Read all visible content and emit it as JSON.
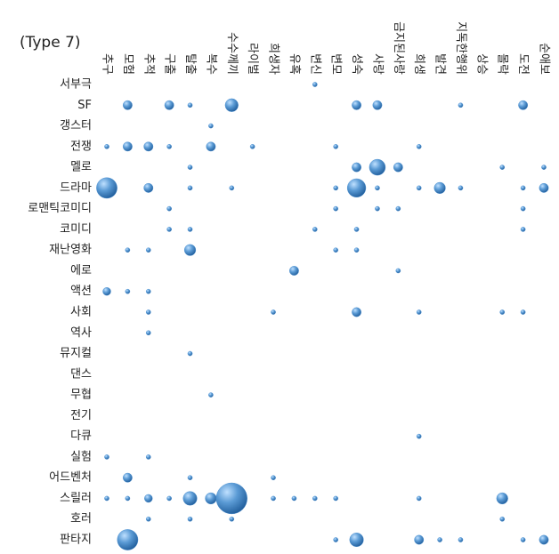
{
  "chart_data": {
    "type": "bubble",
    "title": "(Type 7)",
    "x_categories": [
      "추구",
      "모험",
      "추적",
      "구출",
      "탈출",
      "복수",
      "수수께끼",
      "라이벌",
      "희생자",
      "유혹",
      "변신",
      "변모",
      "성숙",
      "사랑",
      "금지된사랑",
      "희생",
      "발견",
      "지독한행위",
      "상승",
      "몰락",
      "도전",
      "순애보"
    ],
    "color": "#4a8fd0",
    "series": [
      {
        "name": "서부극",
        "values": [
          null,
          null,
          null,
          null,
          null,
          null,
          null,
          null,
          null,
          null,
          1,
          null,
          null,
          null,
          null,
          null,
          null,
          null,
          null,
          null,
          null,
          null
        ]
      },
      {
        "name": "SF",
        "values": [
          null,
          4,
          null,
          4,
          1,
          null,
          8,
          null,
          null,
          null,
          null,
          null,
          4,
          4,
          null,
          null,
          null,
          1,
          null,
          null,
          4,
          null
        ]
      },
      {
        "name": "갱스터",
        "values": [
          null,
          null,
          null,
          null,
          null,
          1,
          null,
          null,
          null,
          null,
          null,
          null,
          null,
          null,
          null,
          null,
          null,
          null,
          null,
          null,
          null,
          null
        ]
      },
      {
        "name": "전쟁",
        "values": [
          1,
          4,
          4,
          1,
          null,
          4,
          null,
          1,
          null,
          null,
          null,
          1,
          null,
          null,
          null,
          1,
          null,
          null,
          null,
          null,
          null,
          null
        ]
      },
      {
        "name": "멜로",
        "values": [
          null,
          null,
          null,
          null,
          1,
          null,
          null,
          null,
          null,
          null,
          null,
          null,
          4,
          12,
          4,
          null,
          null,
          null,
          null,
          1,
          null,
          1
        ]
      },
      {
        "name": "드라마",
        "values": [
          20,
          null,
          4,
          null,
          1,
          null,
          1,
          null,
          null,
          null,
          null,
          1,
          16,
          1,
          null,
          1,
          6,
          1,
          null,
          null,
          1,
          4
        ]
      },
      {
        "name": "로맨틱코미디",
        "values": [
          null,
          null,
          null,
          1,
          null,
          null,
          null,
          null,
          null,
          null,
          null,
          1,
          null,
          1,
          1,
          null,
          null,
          null,
          null,
          null,
          1,
          null
        ]
      },
      {
        "name": "코미디",
        "values": [
          null,
          null,
          null,
          1,
          1,
          null,
          null,
          null,
          null,
          null,
          1,
          null,
          1,
          null,
          null,
          null,
          null,
          null,
          null,
          null,
          1,
          null
        ]
      },
      {
        "name": "재난영화",
        "values": [
          null,
          1,
          1,
          null,
          6,
          null,
          null,
          null,
          null,
          null,
          null,
          1,
          1,
          null,
          null,
          null,
          null,
          null,
          null,
          null,
          null,
          null
        ]
      },
      {
        "name": "에로",
        "values": [
          null,
          null,
          null,
          null,
          null,
          null,
          null,
          null,
          null,
          4,
          null,
          null,
          null,
          null,
          1,
          null,
          null,
          null,
          null,
          null,
          null,
          null
        ]
      },
      {
        "name": "액션",
        "values": [
          3,
          1,
          1,
          null,
          null,
          null,
          null,
          null,
          null,
          null,
          null,
          null,
          null,
          null,
          null,
          null,
          null,
          null,
          null,
          null,
          null,
          null
        ]
      },
      {
        "name": "사회",
        "values": [
          null,
          null,
          1,
          null,
          null,
          null,
          null,
          null,
          1,
          null,
          null,
          null,
          4,
          null,
          null,
          1,
          null,
          null,
          null,
          1,
          1,
          null
        ]
      },
      {
        "name": "역사",
        "values": [
          null,
          null,
          1,
          null,
          null,
          null,
          null,
          null,
          null,
          null,
          null,
          null,
          null,
          null,
          null,
          null,
          null,
          null,
          null,
          null,
          null,
          null
        ]
      },
      {
        "name": "뮤지컬",
        "values": [
          null,
          null,
          null,
          null,
          1,
          null,
          null,
          null,
          null,
          null,
          null,
          null,
          null,
          null,
          null,
          null,
          null,
          null,
          null,
          null,
          null,
          null
        ]
      },
      {
        "name": "댄스",
        "values": [
          null,
          null,
          null,
          null,
          null,
          null,
          null,
          null,
          null,
          null,
          null,
          null,
          null,
          null,
          null,
          null,
          null,
          null,
          null,
          null,
          null,
          null
        ]
      },
      {
        "name": "무협",
        "values": [
          null,
          null,
          null,
          null,
          null,
          1,
          null,
          null,
          null,
          null,
          null,
          null,
          null,
          null,
          null,
          null,
          null,
          null,
          null,
          null,
          null,
          null
        ]
      },
      {
        "name": "전기",
        "values": [
          null,
          null,
          null,
          null,
          null,
          null,
          null,
          null,
          null,
          null,
          null,
          null,
          null,
          null,
          null,
          null,
          null,
          null,
          null,
          null,
          null,
          null
        ]
      },
      {
        "name": "다큐",
        "values": [
          null,
          null,
          null,
          null,
          null,
          null,
          null,
          null,
          null,
          null,
          null,
          null,
          null,
          null,
          null,
          1,
          null,
          null,
          null,
          null,
          null,
          null
        ]
      },
      {
        "name": "실험",
        "values": [
          1,
          null,
          1,
          null,
          null,
          null,
          null,
          null,
          null,
          null,
          null,
          null,
          null,
          null,
          null,
          null,
          null,
          null,
          null,
          null,
          null,
          null
        ]
      },
      {
        "name": "어드벤처",
        "values": [
          null,
          4,
          null,
          null,
          1,
          null,
          null,
          null,
          1,
          null,
          null,
          null,
          null,
          null,
          null,
          null,
          null,
          null,
          null,
          null,
          null,
          null
        ]
      },
      {
        "name": "스릴러",
        "values": [
          1,
          1,
          3,
          1,
          9,
          6,
          45,
          null,
          1,
          1,
          1,
          1,
          null,
          null,
          null,
          1,
          null,
          null,
          null,
          6,
          null,
          null
        ]
      },
      {
        "name": "호러",
        "values": [
          null,
          null,
          1,
          null,
          1,
          null,
          1,
          null,
          null,
          null,
          null,
          null,
          null,
          null,
          null,
          null,
          null,
          null,
          null,
          1,
          null,
          null
        ]
      },
      {
        "name": "판타지",
        "values": [
          null,
          20,
          null,
          null,
          null,
          null,
          null,
          null,
          null,
          null,
          null,
          1,
          9,
          null,
          null,
          4,
          1,
          1,
          null,
          null,
          1,
          4
        ]
      }
    ]
  }
}
